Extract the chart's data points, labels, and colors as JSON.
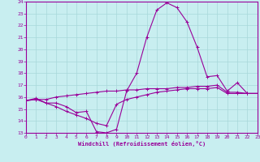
{
  "background_color": "#c8eef0",
  "line_color": "#990099",
  "grid_color": "#a8d8da",
  "xlabel": "Windchill (Refroidissement éolien,°C)",
  "ylim": [
    13,
    24
  ],
  "xlim": [
    0,
    23
  ],
  "yticks": [
    13,
    14,
    15,
    16,
    17,
    18,
    19,
    20,
    21,
    22,
    23,
    24
  ],
  "xticks": [
    0,
    1,
    2,
    3,
    4,
    5,
    6,
    7,
    8,
    9,
    10,
    11,
    12,
    13,
    14,
    15,
    16,
    17,
    18,
    19,
    20,
    21,
    22,
    23
  ],
  "curve1_x": [
    0,
    1,
    2,
    3,
    4,
    5,
    6,
    7,
    8,
    9,
    10,
    11,
    12,
    13,
    14,
    15,
    16,
    17,
    18,
    19,
    20,
    21,
    22,
    23
  ],
  "curve1_y": [
    15.7,
    15.9,
    15.5,
    15.5,
    15.2,
    14.7,
    14.8,
    13.1,
    13.0,
    13.3,
    16.5,
    18.0,
    21.0,
    23.3,
    23.9,
    23.5,
    22.3,
    20.2,
    17.7,
    17.8,
    16.5,
    17.2,
    16.3,
    16.3
  ],
  "curve2_x": [
    0,
    1,
    2,
    3,
    4,
    5,
    6,
    7,
    8,
    9,
    10,
    11,
    12,
    13,
    14,
    15,
    16,
    17,
    18,
    19,
    20,
    21,
    22,
    23
  ],
  "curve2_y": [
    15.7,
    15.8,
    15.8,
    16.0,
    16.1,
    16.2,
    16.3,
    16.4,
    16.5,
    16.5,
    16.6,
    16.6,
    16.7,
    16.7,
    16.7,
    16.8,
    16.8,
    16.9,
    16.9,
    17.0,
    16.4,
    16.4,
    16.3,
    16.3
  ],
  "curve3_x": [
    0,
    1,
    2,
    3,
    4,
    5,
    6,
    7,
    8,
    9,
    10,
    11,
    12,
    13,
    14,
    15,
    16,
    17,
    18,
    19,
    20,
    21,
    22,
    23
  ],
  "curve3_y": [
    15.7,
    15.8,
    15.5,
    15.2,
    14.8,
    14.5,
    14.2,
    13.8,
    13.6,
    15.4,
    15.8,
    16.0,
    16.2,
    16.4,
    16.5,
    16.6,
    16.7,
    16.7,
    16.7,
    16.8,
    16.3,
    16.3,
    16.3,
    16.3
  ]
}
